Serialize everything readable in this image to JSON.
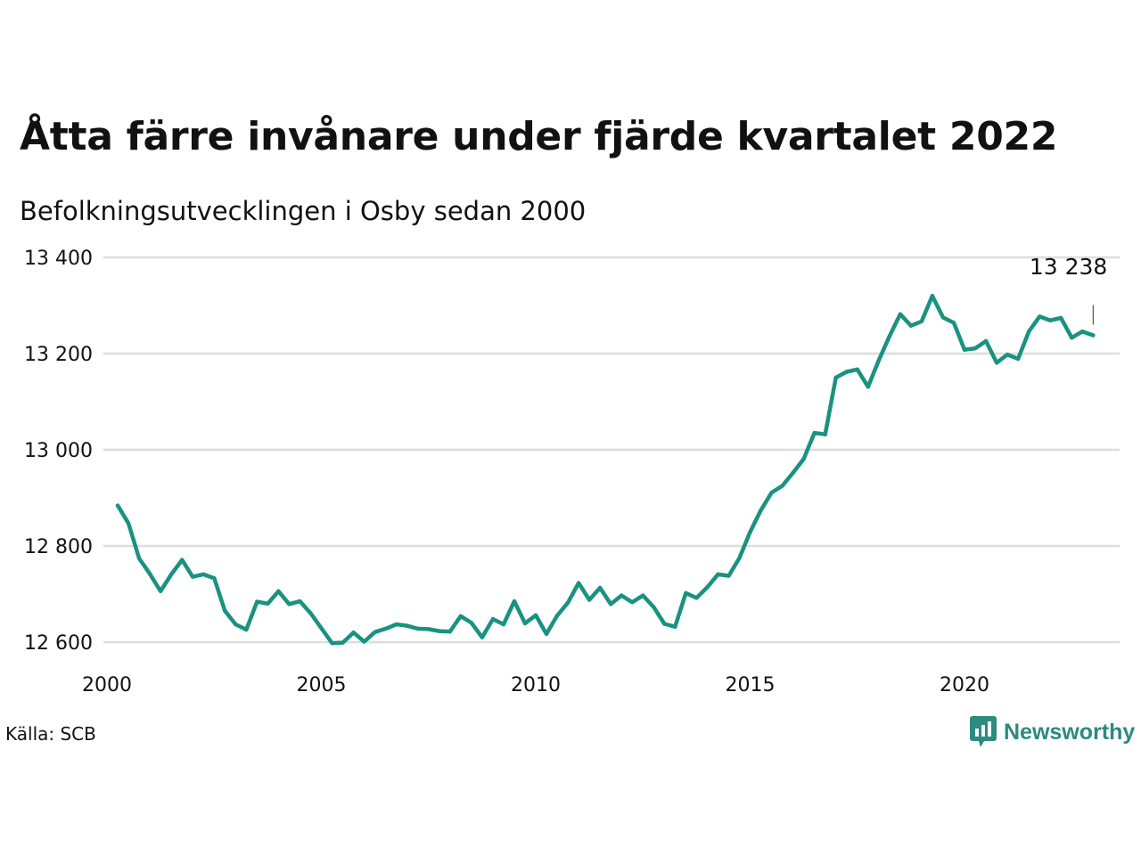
{
  "title": "Åtta färre invånare under fjärde kvartalet 2022",
  "subtitle": "Befolkningsutvecklingen i Osby sedan 2000",
  "source": "Källa: SCB",
  "brand": "Newsworthy",
  "colors": {
    "line": "#1a9280",
    "grid": "#dddddd",
    "brand": "#2c8a7e"
  },
  "chart_data": {
    "type": "line",
    "title": "Åtta färre invånare under fjärde kvartalet 2022",
    "subtitle": "Befolkningsutvecklingen i Osby sedan 2000",
    "xlabel": "",
    "ylabel": "",
    "grid": true,
    "x_ticks": [
      2000,
      2005,
      2010,
      2015,
      2020
    ],
    "y_ticks": [
      12600,
      12800,
      13000,
      13200,
      13400
    ],
    "y_tick_labels": [
      "12 600",
      "12 800",
      "13 000",
      "13 200",
      "13 400"
    ],
    "xlim": [
      2000,
      2023.5
    ],
    "ylim": [
      12600,
      13400
    ],
    "end_label": "13 238",
    "series": [
      {
        "x": [
          2000.25,
          2000.5,
          2000.75,
          2001.0,
          2001.25,
          2001.5,
          2001.75,
          2002.0,
          2002.25,
          2002.5,
          2002.75,
          2003.0,
          2003.25,
          2003.5,
          2003.75,
          2004.0,
          2004.25,
          2004.5,
          2004.75,
          2005.0,
          2005.25,
          2005.5,
          2005.75,
          2006.0,
          2006.25,
          2006.5,
          2006.75,
          2007.0,
          2007.25,
          2007.5,
          2007.75,
          2008.0,
          2008.25,
          2008.5,
          2008.75,
          2009.0,
          2009.25,
          2009.5,
          2009.75,
          2010.0,
          2010.25,
          2010.5,
          2010.75,
          2011.0,
          2011.25,
          2011.5,
          2011.75,
          2012.0,
          2012.25,
          2012.5,
          2012.75,
          2013.0,
          2013.25,
          2013.5,
          2013.75,
          2014.0,
          2014.25,
          2014.5,
          2014.75,
          2015.0,
          2015.25,
          2015.5,
          2015.75,
          2016.0,
          2016.25,
          2016.5,
          2016.75,
          2017.0,
          2017.25,
          2017.5,
          2017.75,
          2018.0,
          2018.25,
          2018.5,
          2018.75,
          2019.0,
          2019.25,
          2019.5,
          2019.75,
          2020.0,
          2020.25,
          2020.5,
          2020.75,
          2021.0,
          2021.25,
          2021.5,
          2021.75,
          2022.0,
          2022.25,
          2022.5,
          2022.75,
          2023.0
        ],
        "values": [
          12884,
          12847,
          12774,
          12742,
          12706,
          12741,
          12771,
          12736,
          12741,
          12733,
          12665,
          12637,
          12626,
          12684,
          12680,
          12706,
          12679,
          12685,
          12660,
          12629,
          12598,
          12599,
          12620,
          12601,
          12621,
          12628,
          12637,
          12634,
          12628,
          12627,
          12623,
          12622,
          12654,
          12640,
          12610,
          12648,
          12637,
          12685,
          12639,
          12656,
          12617,
          12655,
          12682,
          12723,
          12688,
          12713,
          12679,
          12697,
          12683,
          12697,
          12673,
          12638,
          12632,
          12702,
          12692,
          12714,
          12741,
          12738,
          12775,
          12829,
          12874,
          12911,
          12925,
          12952,
          12981,
          13035,
          13032,
          13150,
          13162,
          13167,
          13131,
          13186,
          13236,
          13282,
          13258,
          13267,
          13320,
          13275,
          13264,
          13208,
          13211,
          13226,
          13181,
          13198,
          13189,
          13246,
          13277,
          13269,
          13274,
          13233,
          13246,
          13238
        ]
      }
    ]
  }
}
